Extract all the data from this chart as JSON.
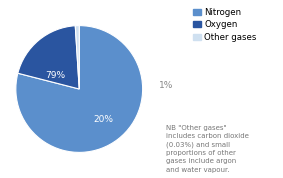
{
  "labels": [
    "Nitrogen",
    "Oxygen",
    "Other gases"
  ],
  "values": [
    79,
    20,
    1
  ],
  "colors": [
    "#5b8fcc",
    "#2a55a0",
    "#cfe0f0"
  ],
  "pct_labels": [
    "79%",
    "20%",
    "1%"
  ],
  "legend_labels": [
    "Nitrogen",
    "Oxygen",
    "Other gases"
  ],
  "note_text": "NB \"Other gases\"\nincludes carbon dioxide\n(0.03%) and small\nproportions of other\ngases include argon\nand water vapour.",
  "background_color": "#ffffff",
  "startangle": 90,
  "note_fontsize": 5.0,
  "pct_fontsize": 6.5,
  "legend_fontsize": 6.2
}
